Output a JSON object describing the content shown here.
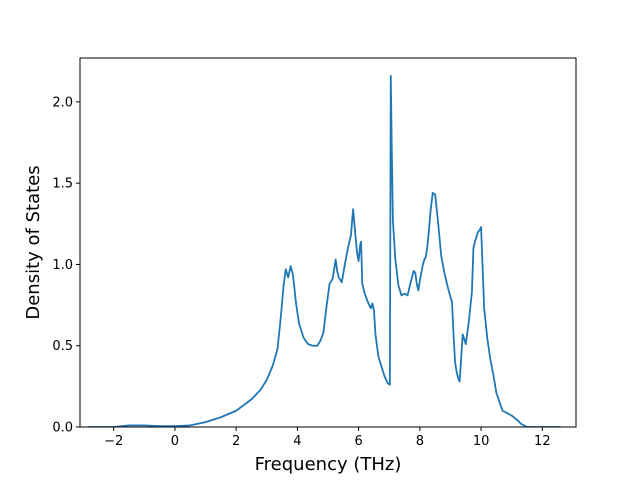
{
  "chart_data": {
    "type": "line",
    "xlabel": "Frequency (THz)",
    "ylabel": "Density of States",
    "xlim": [
      -3.1,
      13.1
    ],
    "ylim": [
      0.0,
      2.27
    ],
    "xticks": [
      -2,
      0,
      2,
      4,
      6,
      8,
      10,
      12
    ],
    "xtick_labels": [
      "−2",
      "0",
      "2",
      "4",
      "6",
      "8",
      "10",
      "12"
    ],
    "yticks": [
      0.0,
      0.5,
      1.0,
      1.5,
      2.0
    ],
    "ytick_labels": [
      "0.0",
      "0.5",
      "1.0",
      "1.5",
      "2.0"
    ],
    "grid": false,
    "line_color": "#1f77b4",
    "series": [
      {
        "x": [
          -2.85,
          -2.0,
          -1.5,
          -1.3,
          -1.0,
          -0.5,
          0.0,
          0.5,
          1.0,
          1.5,
          2.0,
          2.5,
          2.8,
          3.0,
          3.2,
          3.35,
          3.45,
          3.55,
          3.62,
          3.7,
          3.78,
          3.85,
          3.9,
          3.95,
          4.05,
          4.2,
          4.35,
          4.5,
          4.65,
          4.75,
          4.85,
          4.95,
          5.05,
          5.15,
          5.25,
          5.3,
          5.35,
          5.45,
          5.55,
          5.65,
          5.75,
          5.82,
          5.9,
          5.95,
          6.0,
          6.05,
          6.08,
          6.12,
          6.2,
          6.3,
          6.4,
          6.45,
          6.5,
          6.55,
          6.65,
          6.75,
          6.85,
          6.95,
          7.02,
          7.05,
          7.08,
          7.12,
          7.2,
          7.3,
          7.4,
          7.5,
          7.6,
          7.7,
          7.8,
          7.85,
          7.9,
          7.95,
          8.0,
          8.05,
          8.1,
          8.15,
          8.2,
          8.25,
          8.3,
          8.35,
          8.42,
          8.5,
          8.6,
          8.7,
          8.8,
          8.9,
          9.0,
          9.05,
          9.1,
          9.15,
          9.2,
          9.25,
          9.3,
          9.4,
          9.5,
          9.55,
          9.6,
          9.7,
          9.75,
          9.8,
          9.85,
          9.9,
          9.95,
          10.0,
          10.1,
          10.2,
          10.3,
          10.4,
          10.5,
          10.7,
          11.0,
          11.2,
          11.3,
          11.5,
          12.0,
          12.6
        ],
        "y": [
          0.0,
          0.0,
          0.01,
          0.01,
          0.01,
          0.005,
          0.005,
          0.01,
          0.03,
          0.06,
          0.1,
          0.17,
          0.23,
          0.29,
          0.38,
          0.48,
          0.66,
          0.87,
          0.97,
          0.92,
          0.99,
          0.94,
          0.86,
          0.77,
          0.64,
          0.55,
          0.51,
          0.5,
          0.5,
          0.53,
          0.58,
          0.74,
          0.88,
          0.91,
          1.03,
          0.96,
          0.92,
          0.89,
          1.0,
          1.1,
          1.18,
          1.34,
          1.17,
          1.07,
          1.02,
          1.12,
          1.14,
          0.88,
          0.82,
          0.77,
          0.73,
          0.76,
          0.72,
          0.57,
          0.43,
          0.37,
          0.31,
          0.27,
          0.26,
          2.16,
          1.75,
          1.27,
          1.03,
          0.87,
          0.81,
          0.82,
          0.81,
          0.89,
          0.96,
          0.95,
          0.88,
          0.84,
          0.9,
          0.95,
          1.0,
          1.03,
          1.05,
          1.12,
          1.22,
          1.33,
          1.44,
          1.43,
          1.25,
          1.05,
          0.95,
          0.87,
          0.8,
          0.77,
          0.57,
          0.4,
          0.34,
          0.3,
          0.28,
          0.57,
          0.51,
          0.58,
          0.65,
          0.83,
          1.1,
          1.14,
          1.17,
          1.2,
          1.21,
          1.23,
          0.73,
          0.55,
          0.42,
          0.32,
          0.21,
          0.1,
          0.07,
          0.04,
          0.02,
          0.0,
          0.0,
          0.0
        ]
      }
    ]
  }
}
